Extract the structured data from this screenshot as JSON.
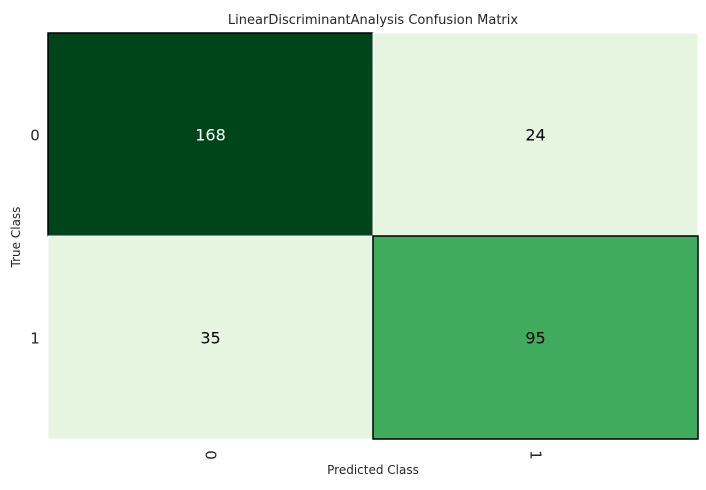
{
  "chart_data": {
    "type": "heatmap",
    "title": "LinearDiscriminantAnalysis Confusion Matrix",
    "xlabel": "Predicted Class",
    "ylabel": "True Class",
    "x_categories": [
      "0",
      "1"
    ],
    "y_categories": [
      "0",
      "1"
    ],
    "matrix": [
      [
        168,
        24
      ],
      [
        35,
        95
      ]
    ],
    "colormap": "Greens",
    "colors": {
      "cell_0_0": "#00441b",
      "cell_0_1": "#e5f5e0",
      "cell_1_0": "#e5f5e0",
      "cell_1_1": "#41ab5d",
      "text_dark": "#ffffff",
      "text_light": "#000000"
    },
    "grid": false,
    "legend": "none"
  }
}
